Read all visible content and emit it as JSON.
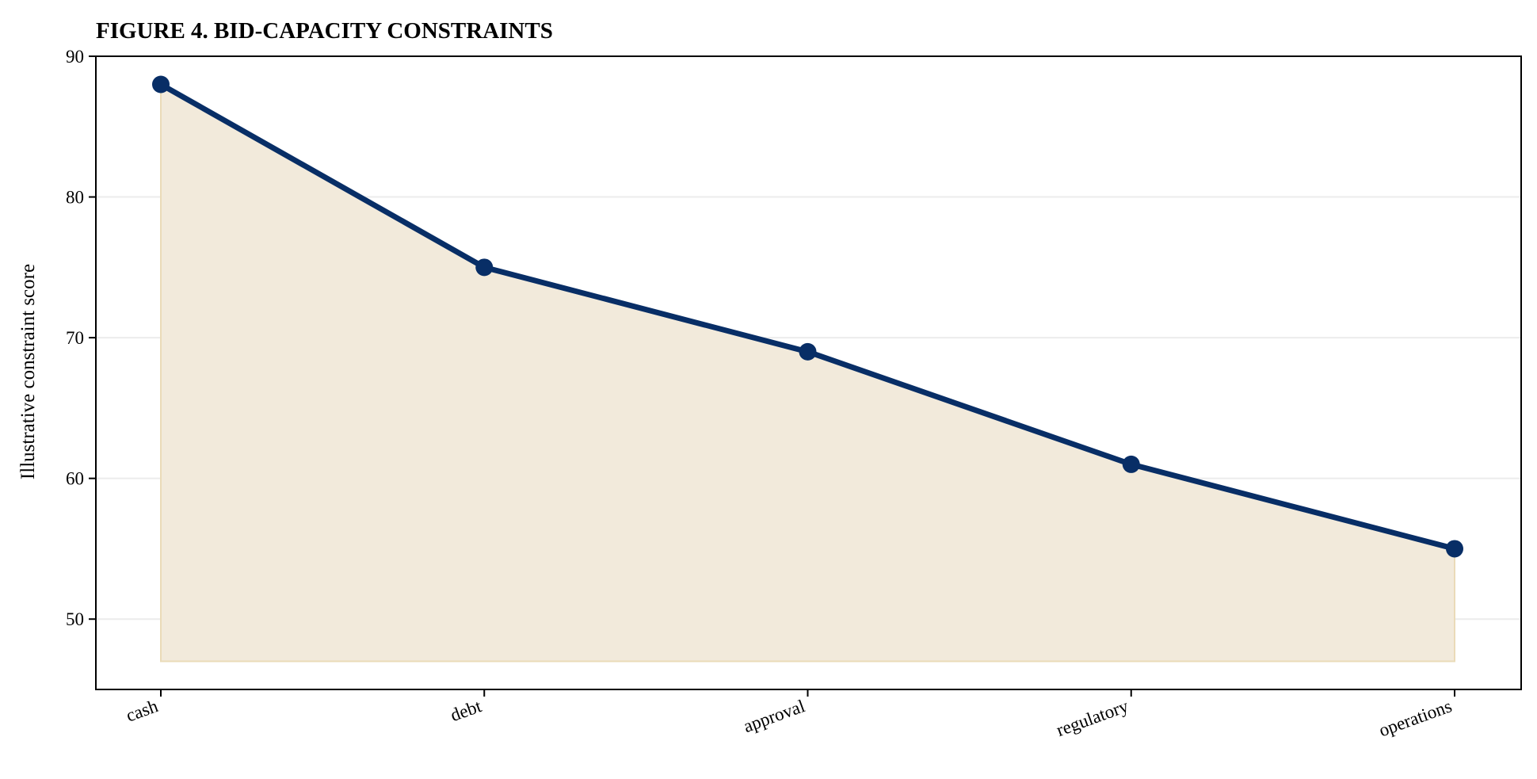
{
  "chart_data": {
    "type": "area",
    "title": "FIGURE 4. BID-CAPACITY CONSTRAINTS",
    "xlabel": "",
    "ylabel": "Illustrative constraint score",
    "categories": [
      "cash",
      "debt",
      "approval",
      "regulatory",
      "operations"
    ],
    "series": [
      {
        "values": [
          88,
          75,
          69,
          61,
          55
        ]
      }
    ],
    "fill_baseline": 47,
    "ylim": [
      45,
      90
    ],
    "yticks": [
      50,
      60,
      70,
      80,
      90
    ],
    "grid": "horizontal",
    "legend": "none",
    "colors": {
      "line": "#082e66",
      "marker": "#082e66",
      "fill": "#f2eadb",
      "fill_edge": "#eadbb8",
      "grid": "#ececec",
      "axis": "#000000"
    }
  }
}
